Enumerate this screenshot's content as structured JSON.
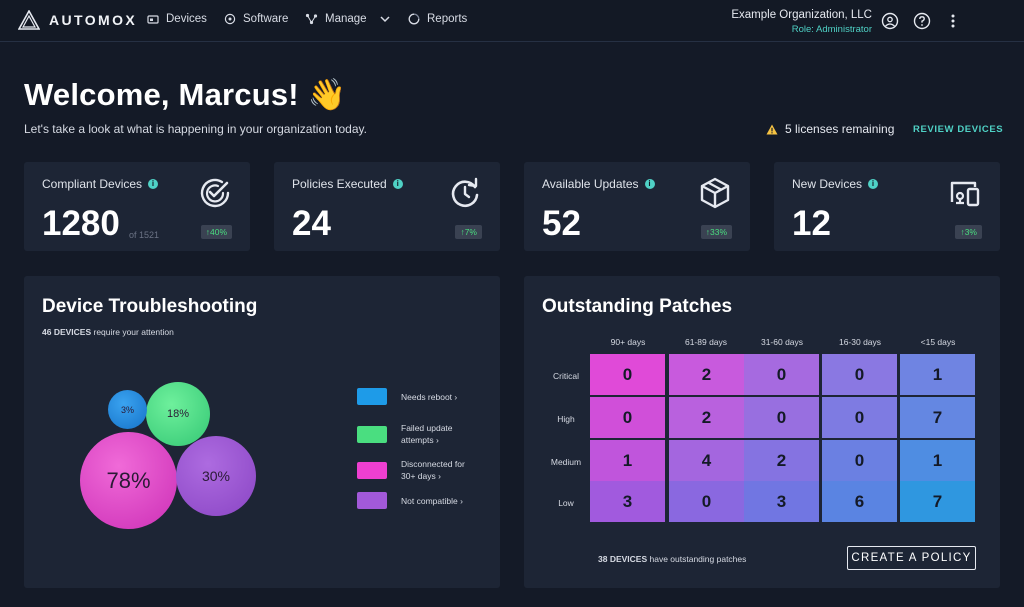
{
  "nav": {
    "brand": "AUTOMOX",
    "items": [
      {
        "label": "Devices",
        "icon": "devices-icon"
      },
      {
        "label": "Software",
        "icon": "software-icon"
      },
      {
        "label": "Manage",
        "icon": "manage-icon"
      },
      {
        "label": "Reports",
        "icon": "reports-icon"
      }
    ],
    "org_name": "Example Organization, LLC",
    "org_role": "Role: Administrator"
  },
  "welcome": {
    "title": "Welcome, Marcus! 👋",
    "subtitle": "Let's take a look at what is happening in your organization today.",
    "licenses": "5 licenses remaining",
    "review": "REVIEW DEVICES"
  },
  "stats": [
    {
      "title": "Compliant Devices",
      "value": "1280",
      "of": "of 1521",
      "badge": "↑40%",
      "icon": "compliant-check-icon"
    },
    {
      "title": "Policies Executed",
      "value": "24",
      "badge": "↑7%",
      "icon": "policy-refresh-icon"
    },
    {
      "title": "Available Updates",
      "value": "52",
      "badge": "↑33%",
      "icon": "package-box-icon"
    },
    {
      "title": "New Devices",
      "value": "12",
      "badge": "↑3%",
      "icon": "new-devices-icon"
    }
  ],
  "troubleshooting": {
    "title": "Device Troubleshooting",
    "count": "46 DEVICES",
    "count_suffix": " require your attention",
    "bubbles": [
      {
        "label": "3%",
        "color": "#1e88e5"
      },
      {
        "label": "18%",
        "color": "#4ade80"
      },
      {
        "label": "78%",
        "color": "#e040c8"
      },
      {
        "label": "30%",
        "color": "#9b59d0"
      }
    ],
    "legend": [
      {
        "label": "Needs reboot",
        "color": "#1e9be8"
      },
      {
        "label": "Failed update attempts",
        "color": "#4ade80"
      },
      {
        "label": "Disconnected for 30+ days",
        "color": "#ee3fd0"
      },
      {
        "label": "Not compatible",
        "color": "#a259d9"
      }
    ]
  },
  "patches": {
    "title": "Outstanding Patches",
    "columns": [
      "90+ days",
      "61-89 days",
      "31-60 days",
      "16-30 days",
      "<15 days"
    ],
    "rows": [
      "Critical",
      "High",
      "Medium",
      "Low"
    ],
    "values": [
      [
        "0",
        "2",
        "0",
        "0",
        "1"
      ],
      [
        "0",
        "2",
        "0",
        "0",
        "7"
      ],
      [
        "1",
        "4",
        "2",
        "0",
        "1"
      ],
      [
        "3",
        "0",
        "3",
        "6",
        "7"
      ]
    ],
    "footer_count": "38 DEVICES",
    "footer_suffix": " have outstanding patches",
    "button": "CREATE A POLICY"
  }
}
